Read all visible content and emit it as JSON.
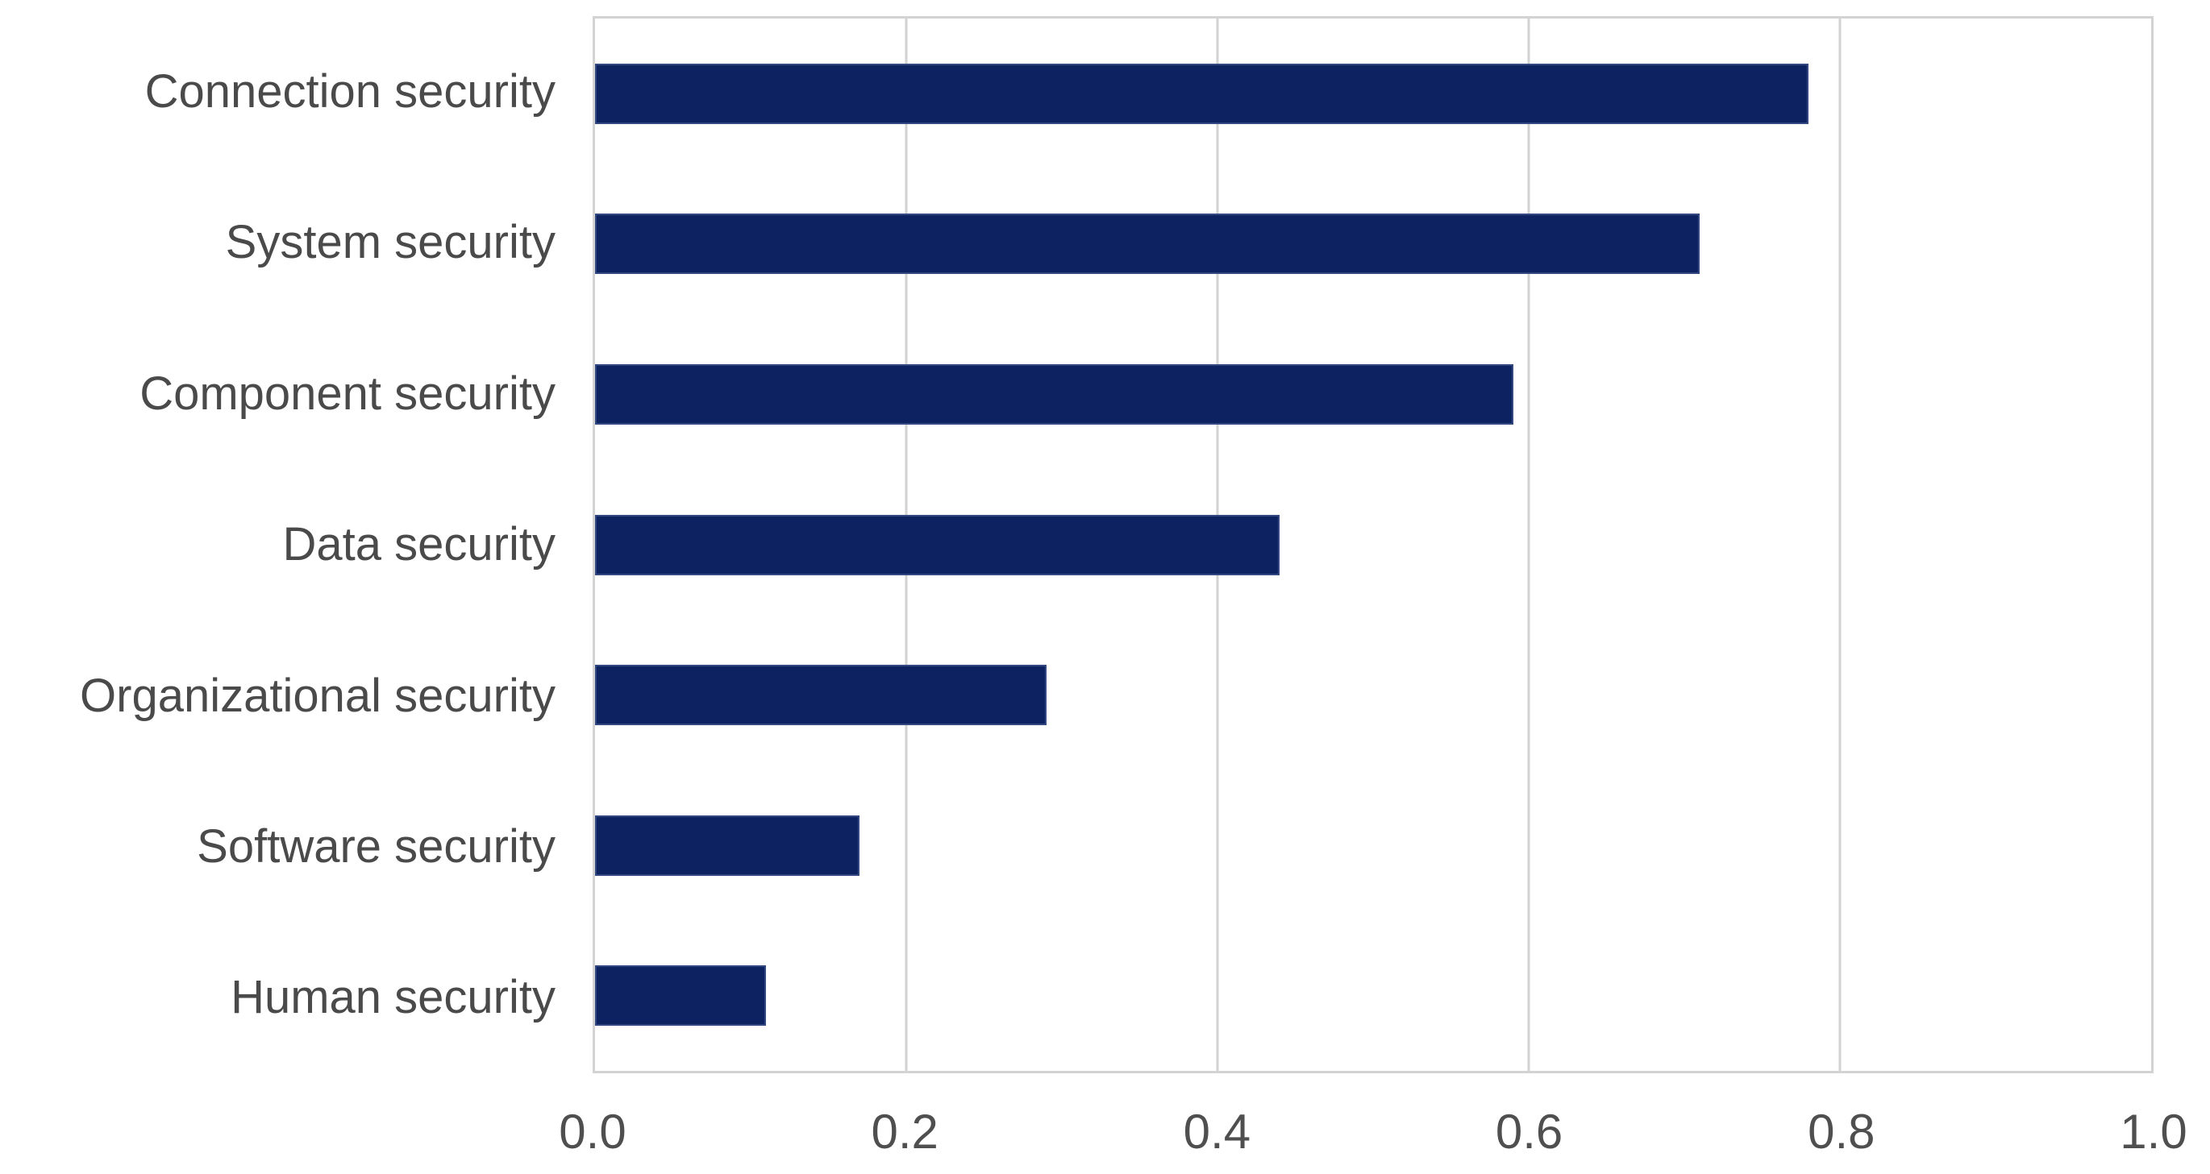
{
  "chart_data": {
    "type": "bar",
    "orientation": "horizontal",
    "title": "",
    "xlabel": "",
    "ylabel": "",
    "categories": [
      "Connection security",
      "System security",
      "Component security",
      "Data security",
      "Organizational security",
      "Software security",
      "Human security"
    ],
    "values": [
      0.78,
      0.71,
      0.59,
      0.44,
      0.29,
      0.17,
      0.11
    ],
    "xlim": [
      0.0,
      1.0
    ],
    "xticks": [
      {
        "value": 0.0,
        "label": "0.0"
      },
      {
        "value": 0.2,
        "label": "0.2"
      },
      {
        "value": 0.4,
        "label": "0.4"
      },
      {
        "value": 0.6,
        "label": "0.6"
      },
      {
        "value": 0.8,
        "label": "0.8"
      },
      {
        "value": 1.0,
        "label": "1.0"
      }
    ],
    "grid": "vertical-gridlines-at-xticks",
    "legend_position": "none",
    "bar_thickness_fraction": 0.4,
    "colors": {
      "bar": "#0d2261",
      "gridline": "#d2d2d2",
      "plot_border": "#d3d3d3",
      "category_label": "#4a4a4a",
      "tick_label": "#4f4f4f",
      "background": "#ffffff"
    }
  }
}
